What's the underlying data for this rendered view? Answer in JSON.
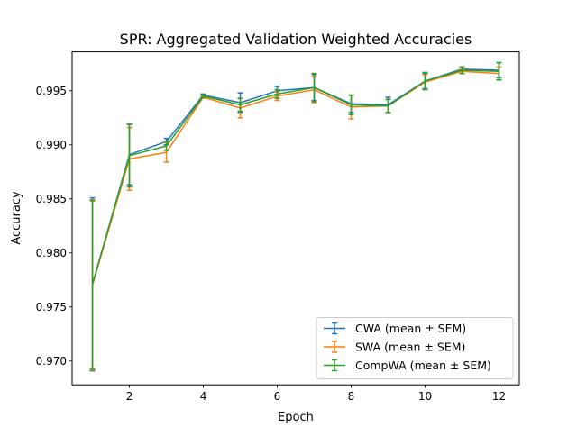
{
  "chart_data": {
    "type": "line",
    "title": "SPR: Aggregated Validation Weighted Accuracies",
    "xlabel": "Epoch",
    "ylabel": "Accuracy",
    "xlim": [
      0.45,
      12.55
    ],
    "ylim": [
      0.9678,
      0.9986
    ],
    "xticks": [
      2,
      4,
      6,
      8,
      10,
      12
    ],
    "yticks": [
      0.97,
      0.975,
      0.98,
      0.985,
      0.99,
      0.995
    ],
    "xtick_labels": [
      "2",
      "4",
      "6",
      "8",
      "10",
      "12"
    ],
    "ytick_labels": [
      "0.970",
      "0.975",
      "0.980",
      "0.985",
      "0.990",
      "0.995"
    ],
    "grid": false,
    "legend_position": "lower-right",
    "x": [
      1,
      2,
      3,
      4,
      5,
      6,
      7,
      8,
      9,
      10,
      11,
      12
    ],
    "series": [
      {
        "name": "CWA (mean ± SEM)",
        "color": "#1f77b4",
        "values": [
          0.9771,
          0.9891,
          0.9903,
          0.9946,
          0.9939,
          0.995,
          0.9953,
          0.9938,
          0.9937,
          0.9959,
          0.997,
          0.9969
        ],
        "errors": [
          0.008,
          0.0028,
          0.0003,
          0.0001,
          0.0009,
          0.0004,
          0.0012,
          0.0008,
          0.0007,
          0.0007,
          0.0002,
          0.0007
        ]
      },
      {
        "name": "SWA (mean ± SEM)",
        "color": "#ff7f0e",
        "values": [
          0.977,
          0.9887,
          0.9893,
          0.9944,
          0.9934,
          0.9945,
          0.9951,
          0.9935,
          0.9936,
          0.9958,
          0.9968,
          0.9966
        ],
        "errors": [
          0.0078,
          0.0029,
          0.0009,
          0.0001,
          0.0009,
          0.0004,
          0.0012,
          0.0011,
          0.0006,
          0.0007,
          0.0002,
          0.0006
        ]
      },
      {
        "name": "CompWA (mean ± SEM)",
        "color": "#2ca02c",
        "values": [
          0.9771,
          0.989,
          0.9899,
          0.9945,
          0.9937,
          0.9947,
          0.9953,
          0.9937,
          0.9936,
          0.9959,
          0.9969,
          0.9968
        ],
        "errors": [
          0.0078,
          0.0029,
          0.0004,
          0.0001,
          0.0006,
          0.0004,
          0.0013,
          0.0009,
          0.0006,
          0.0008,
          0.0003,
          0.0008
        ]
      }
    ]
  }
}
